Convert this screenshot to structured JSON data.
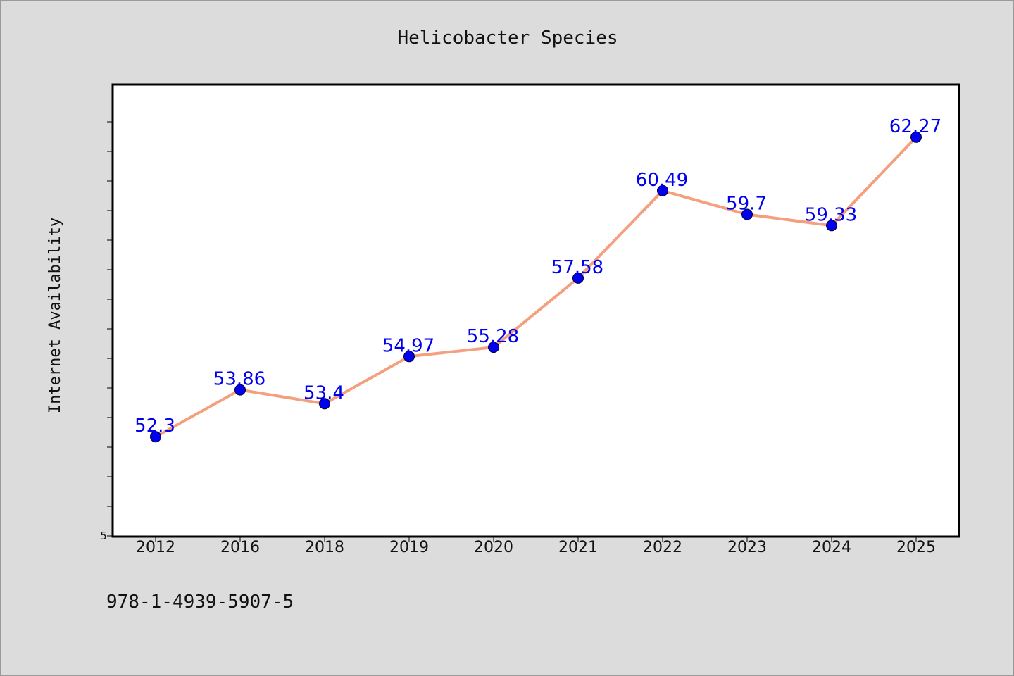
{
  "chart_data": {
    "type": "line",
    "title": "Helicobacter Species",
    "xlabel": "",
    "ylabel": "Internet Availability",
    "categories": [
      "2012",
      "2016",
      "2018",
      "2019",
      "2020",
      "2021",
      "2022",
      "2023",
      "2024",
      "2025"
    ],
    "values": [
      52.3,
      53.86,
      53.4,
      54.97,
      55.28,
      57.58,
      60.49,
      59.7,
      59.33,
      62.27
    ],
    "data_labels": [
      "52.3",
      "53.86",
      "53.4",
      "54.97",
      "55.28",
      "57.58",
      "60.49",
      "59.7",
      "59.33",
      "62.27"
    ],
    "ylim": [
      49,
      64
    ],
    "y_tick_labels": [
      "5"
    ],
    "grid": false,
    "legend": "none",
    "line_color": "#f4a07e",
    "marker_color": "#0000ee"
  },
  "footer": {
    "isbn": "978-1-4939-5907-5"
  }
}
